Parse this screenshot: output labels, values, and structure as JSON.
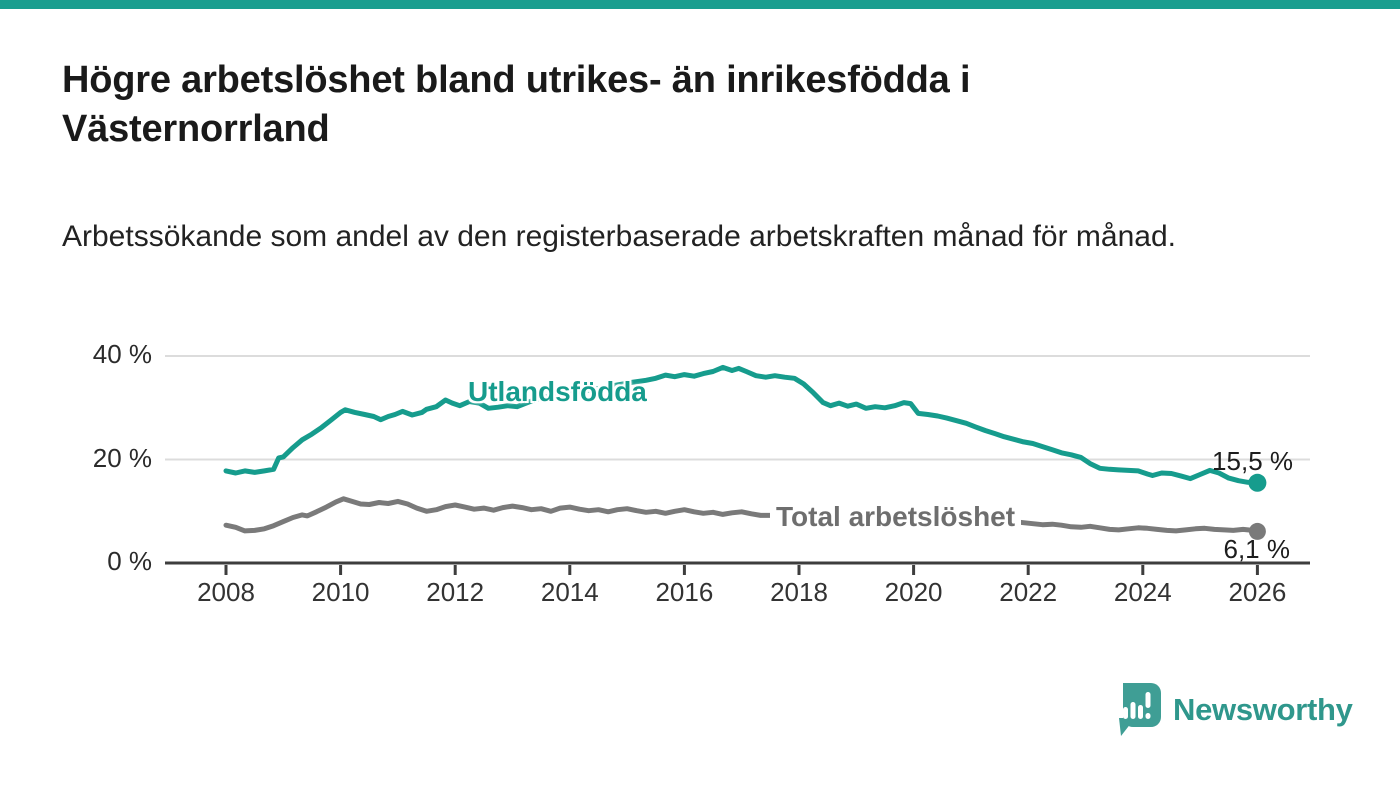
{
  "accent_color": "#1a9e8f",
  "header": {
    "title": "Högre arbetslöshet bland utrikes- än inrikesfödda i Västernorrland",
    "subtitle": "Arbetssökande som andel av den registerbaserade arbetskraften månad för månad."
  },
  "footer": {
    "brand": "Newsworthy",
    "brand_color": "#2f978c",
    "logo_icon_color": "#3f9e95"
  },
  "chart_data": {
    "type": "line",
    "title": "Högre arbetslöshet bland utrikes- än inrikesfödda i Västernorrland",
    "subtitle": "Arbetssökande som andel av den registerbaserade arbetskraften månad för månad.",
    "xlabel": "",
    "ylabel": "",
    "grid": "horizontal",
    "legend_position": "inline-labels",
    "ylim": [
      0,
      43
    ],
    "xlim": [
      2006.9,
      2026.9
    ],
    "y_ticks": [
      {
        "value": 40,
        "label": "40 %"
      },
      {
        "value": 20,
        "label": "20 %"
      },
      {
        "value": 0,
        "label": "0 %"
      }
    ],
    "x_ticks": [
      {
        "value": 2008,
        "label": "2008"
      },
      {
        "value": 2010,
        "label": "2010"
      },
      {
        "value": 2012,
        "label": "2012"
      },
      {
        "value": 2014,
        "label": "2014"
      },
      {
        "value": 2016,
        "label": "2016"
      },
      {
        "value": 2018,
        "label": "2018"
      },
      {
        "value": 2020,
        "label": "2020"
      },
      {
        "value": 2022,
        "label": "2022"
      },
      {
        "value": 2024,
        "label": "2024"
      },
      {
        "value": 2026,
        "label": "2026"
      }
    ],
    "series": [
      {
        "name": "Utlandsfödda",
        "color": "#169c8d",
        "end_label": "15,5 %",
        "end_value": 15.5,
        "points": [
          [
            2008.0,
            17.8
          ],
          [
            2008.17,
            17.4
          ],
          [
            2008.33,
            17.8
          ],
          [
            2008.5,
            17.5
          ],
          [
            2008.67,
            17.8
          ],
          [
            2008.83,
            18.1
          ],
          [
            2008.92,
            20.3
          ],
          [
            2009.0,
            20.5
          ],
          [
            2009.17,
            22.3
          ],
          [
            2009.33,
            23.8
          ],
          [
            2009.5,
            24.9
          ],
          [
            2009.67,
            26.2
          ],
          [
            2009.83,
            27.6
          ],
          [
            2010.0,
            29.1
          ],
          [
            2010.08,
            29.6
          ],
          [
            2010.25,
            29.1
          ],
          [
            2010.42,
            28.7
          ],
          [
            2010.58,
            28.3
          ],
          [
            2010.7,
            27.7
          ],
          [
            2010.83,
            28.3
          ],
          [
            2010.95,
            28.7
          ],
          [
            2011.08,
            29.3
          ],
          [
            2011.25,
            28.6
          ],
          [
            2011.42,
            29.1
          ],
          [
            2011.5,
            29.7
          ],
          [
            2011.67,
            30.2
          ],
          [
            2011.83,
            31.5
          ],
          [
            2011.95,
            30.9
          ],
          [
            2012.08,
            30.4
          ],
          [
            2012.25,
            31.2
          ],
          [
            2012.42,
            30.9
          ],
          [
            2012.58,
            29.9
          ],
          [
            2012.75,
            30.1
          ],
          [
            2012.92,
            30.4
          ],
          [
            2013.08,
            30.2
          ],
          [
            2013.33,
            31.3
          ],
          [
            2013.58,
            32.1
          ],
          [
            2013.83,
            32.6
          ],
          [
            2014.08,
            32.9
          ],
          [
            2014.33,
            33.4
          ],
          [
            2014.58,
            33.9
          ],
          [
            2014.83,
            34.4
          ],
          [
            2015.08,
            34.9
          ],
          [
            2015.33,
            35.3
          ],
          [
            2015.5,
            35.7
          ],
          [
            2015.67,
            36.3
          ],
          [
            2015.83,
            36.0
          ],
          [
            2016.0,
            36.4
          ],
          [
            2016.17,
            36.1
          ],
          [
            2016.33,
            36.6
          ],
          [
            2016.5,
            37.0
          ],
          [
            2016.67,
            37.8
          ],
          [
            2016.83,
            37.2
          ],
          [
            2016.95,
            37.6
          ],
          [
            2017.08,
            37.0
          ],
          [
            2017.25,
            36.2
          ],
          [
            2017.42,
            35.9
          ],
          [
            2017.58,
            36.2
          ],
          [
            2017.75,
            35.9
          ],
          [
            2017.92,
            35.7
          ],
          [
            2018.08,
            34.6
          ],
          [
            2018.25,
            32.9
          ],
          [
            2018.42,
            31.0
          ],
          [
            2018.55,
            30.4
          ],
          [
            2018.7,
            30.9
          ],
          [
            2018.85,
            30.3
          ],
          [
            2019.0,
            30.7
          ],
          [
            2019.17,
            29.9
          ],
          [
            2019.33,
            30.2
          ],
          [
            2019.5,
            30.0
          ],
          [
            2019.67,
            30.4
          ],
          [
            2019.83,
            31.0
          ],
          [
            2019.95,
            30.8
          ],
          [
            2020.08,
            28.9
          ],
          [
            2020.25,
            28.7
          ],
          [
            2020.42,
            28.4
          ],
          [
            2020.58,
            28.0
          ],
          [
            2020.75,
            27.5
          ],
          [
            2020.92,
            27.0
          ],
          [
            2021.08,
            26.3
          ],
          [
            2021.25,
            25.6
          ],
          [
            2021.42,
            25.0
          ],
          [
            2021.58,
            24.4
          ],
          [
            2021.75,
            23.9
          ],
          [
            2021.92,
            23.4
          ],
          [
            2022.08,
            23.1
          ],
          [
            2022.25,
            22.5
          ],
          [
            2022.42,
            21.9
          ],
          [
            2022.58,
            21.3
          ],
          [
            2022.75,
            20.9
          ],
          [
            2022.92,
            20.4
          ],
          [
            2023.08,
            19.2
          ],
          [
            2023.25,
            18.3
          ],
          [
            2023.42,
            18.1
          ],
          [
            2023.58,
            18.0
          ],
          [
            2023.75,
            17.9
          ],
          [
            2023.92,
            17.8
          ],
          [
            2024.08,
            17.2
          ],
          [
            2024.17,
            16.9
          ],
          [
            2024.33,
            17.4
          ],
          [
            2024.5,
            17.3
          ],
          [
            2024.67,
            16.8
          ],
          [
            2024.83,
            16.3
          ],
          [
            2025.0,
            17.1
          ],
          [
            2025.17,
            17.9
          ],
          [
            2025.33,
            17.4
          ],
          [
            2025.5,
            16.4
          ],
          [
            2025.67,
            15.9
          ],
          [
            2025.83,
            15.6
          ],
          [
            2026.0,
            15.5
          ]
        ]
      },
      {
        "name": "Total arbetslöshet",
        "color": "#7a7a7a",
        "label_color": "#6e6e6e",
        "end_label": "6,1 %",
        "end_value": 6.1,
        "points": [
          [
            2008.0,
            7.3
          ],
          [
            2008.17,
            6.9
          ],
          [
            2008.33,
            6.2
          ],
          [
            2008.5,
            6.3
          ],
          [
            2008.67,
            6.6
          ],
          [
            2008.83,
            7.2
          ],
          [
            2009.0,
            8.0
          ],
          [
            2009.17,
            8.8
          ],
          [
            2009.33,
            9.3
          ],
          [
            2009.42,
            9.1
          ],
          [
            2009.58,
            9.9
          ],
          [
            2009.75,
            10.8
          ],
          [
            2009.92,
            11.8
          ],
          [
            2010.05,
            12.4
          ],
          [
            2010.2,
            11.9
          ],
          [
            2010.35,
            11.4
          ],
          [
            2010.5,
            11.3
          ],
          [
            2010.67,
            11.7
          ],
          [
            2010.83,
            11.5
          ],
          [
            2011.0,
            11.9
          ],
          [
            2011.17,
            11.4
          ],
          [
            2011.33,
            10.6
          ],
          [
            2011.5,
            10.0
          ],
          [
            2011.67,
            10.3
          ],
          [
            2011.83,
            10.9
          ],
          [
            2012.0,
            11.2
          ],
          [
            2012.17,
            10.8
          ],
          [
            2012.33,
            10.4
          ],
          [
            2012.5,
            10.6
          ],
          [
            2012.67,
            10.2
          ],
          [
            2012.83,
            10.7
          ],
          [
            2013.0,
            11.0
          ],
          [
            2013.17,
            10.7
          ],
          [
            2013.33,
            10.3
          ],
          [
            2013.5,
            10.5
          ],
          [
            2013.67,
            10.0
          ],
          [
            2013.83,
            10.6
          ],
          [
            2014.0,
            10.8
          ],
          [
            2014.17,
            10.4
          ],
          [
            2014.33,
            10.1
          ],
          [
            2014.5,
            10.3
          ],
          [
            2014.67,
            9.9
          ],
          [
            2014.83,
            10.3
          ],
          [
            2015.0,
            10.5
          ],
          [
            2015.17,
            10.1
          ],
          [
            2015.33,
            9.8
          ],
          [
            2015.5,
            10.0
          ],
          [
            2015.67,
            9.6
          ],
          [
            2015.83,
            10.0
          ],
          [
            2016.0,
            10.3
          ],
          [
            2016.17,
            9.9
          ],
          [
            2016.33,
            9.6
          ],
          [
            2016.5,
            9.8
          ],
          [
            2016.67,
            9.4
          ],
          [
            2016.83,
            9.7
          ],
          [
            2017.0,
            9.9
          ],
          [
            2017.17,
            9.5
          ],
          [
            2017.33,
            9.2
          ],
          [
            2017.5,
            9.2
          ],
          [
            2017.67,
            9.4
          ],
          [
            2017.83,
            9.6
          ],
          [
            2018.0,
            9.3
          ],
          [
            2018.25,
            8.9
          ],
          [
            2018.5,
            8.7
          ],
          [
            2018.75,
            8.8
          ],
          [
            2019.0,
            8.9
          ],
          [
            2019.25,
            8.5
          ],
          [
            2019.5,
            8.4
          ],
          [
            2019.75,
            8.7
          ],
          [
            2020.0,
            8.9
          ],
          [
            2020.25,
            9.8
          ],
          [
            2020.42,
            10.2
          ],
          [
            2020.67,
            9.9
          ],
          [
            2021.0,
            9.3
          ],
          [
            2021.33,
            8.7
          ],
          [
            2021.67,
            8.1
          ],
          [
            2022.0,
            7.7
          ],
          [
            2022.25,
            7.4
          ],
          [
            2022.42,
            7.5
          ],
          [
            2022.58,
            7.3
          ],
          [
            2022.75,
            7.0
          ],
          [
            2022.92,
            6.9
          ],
          [
            2023.08,
            7.1
          ],
          [
            2023.25,
            6.8
          ],
          [
            2023.42,
            6.5
          ],
          [
            2023.58,
            6.4
          ],
          [
            2023.75,
            6.6
          ],
          [
            2023.92,
            6.8
          ],
          [
            2024.08,
            6.7
          ],
          [
            2024.25,
            6.5
          ],
          [
            2024.42,
            6.3
          ],
          [
            2024.58,
            6.2
          ],
          [
            2024.75,
            6.4
          ],
          [
            2024.92,
            6.6
          ],
          [
            2025.08,
            6.7
          ],
          [
            2025.25,
            6.5
          ],
          [
            2025.42,
            6.4
          ],
          [
            2025.58,
            6.3
          ],
          [
            2025.75,
            6.5
          ],
          [
            2025.92,
            6.3
          ],
          [
            2026.0,
            6.1
          ]
        ]
      }
    ]
  }
}
